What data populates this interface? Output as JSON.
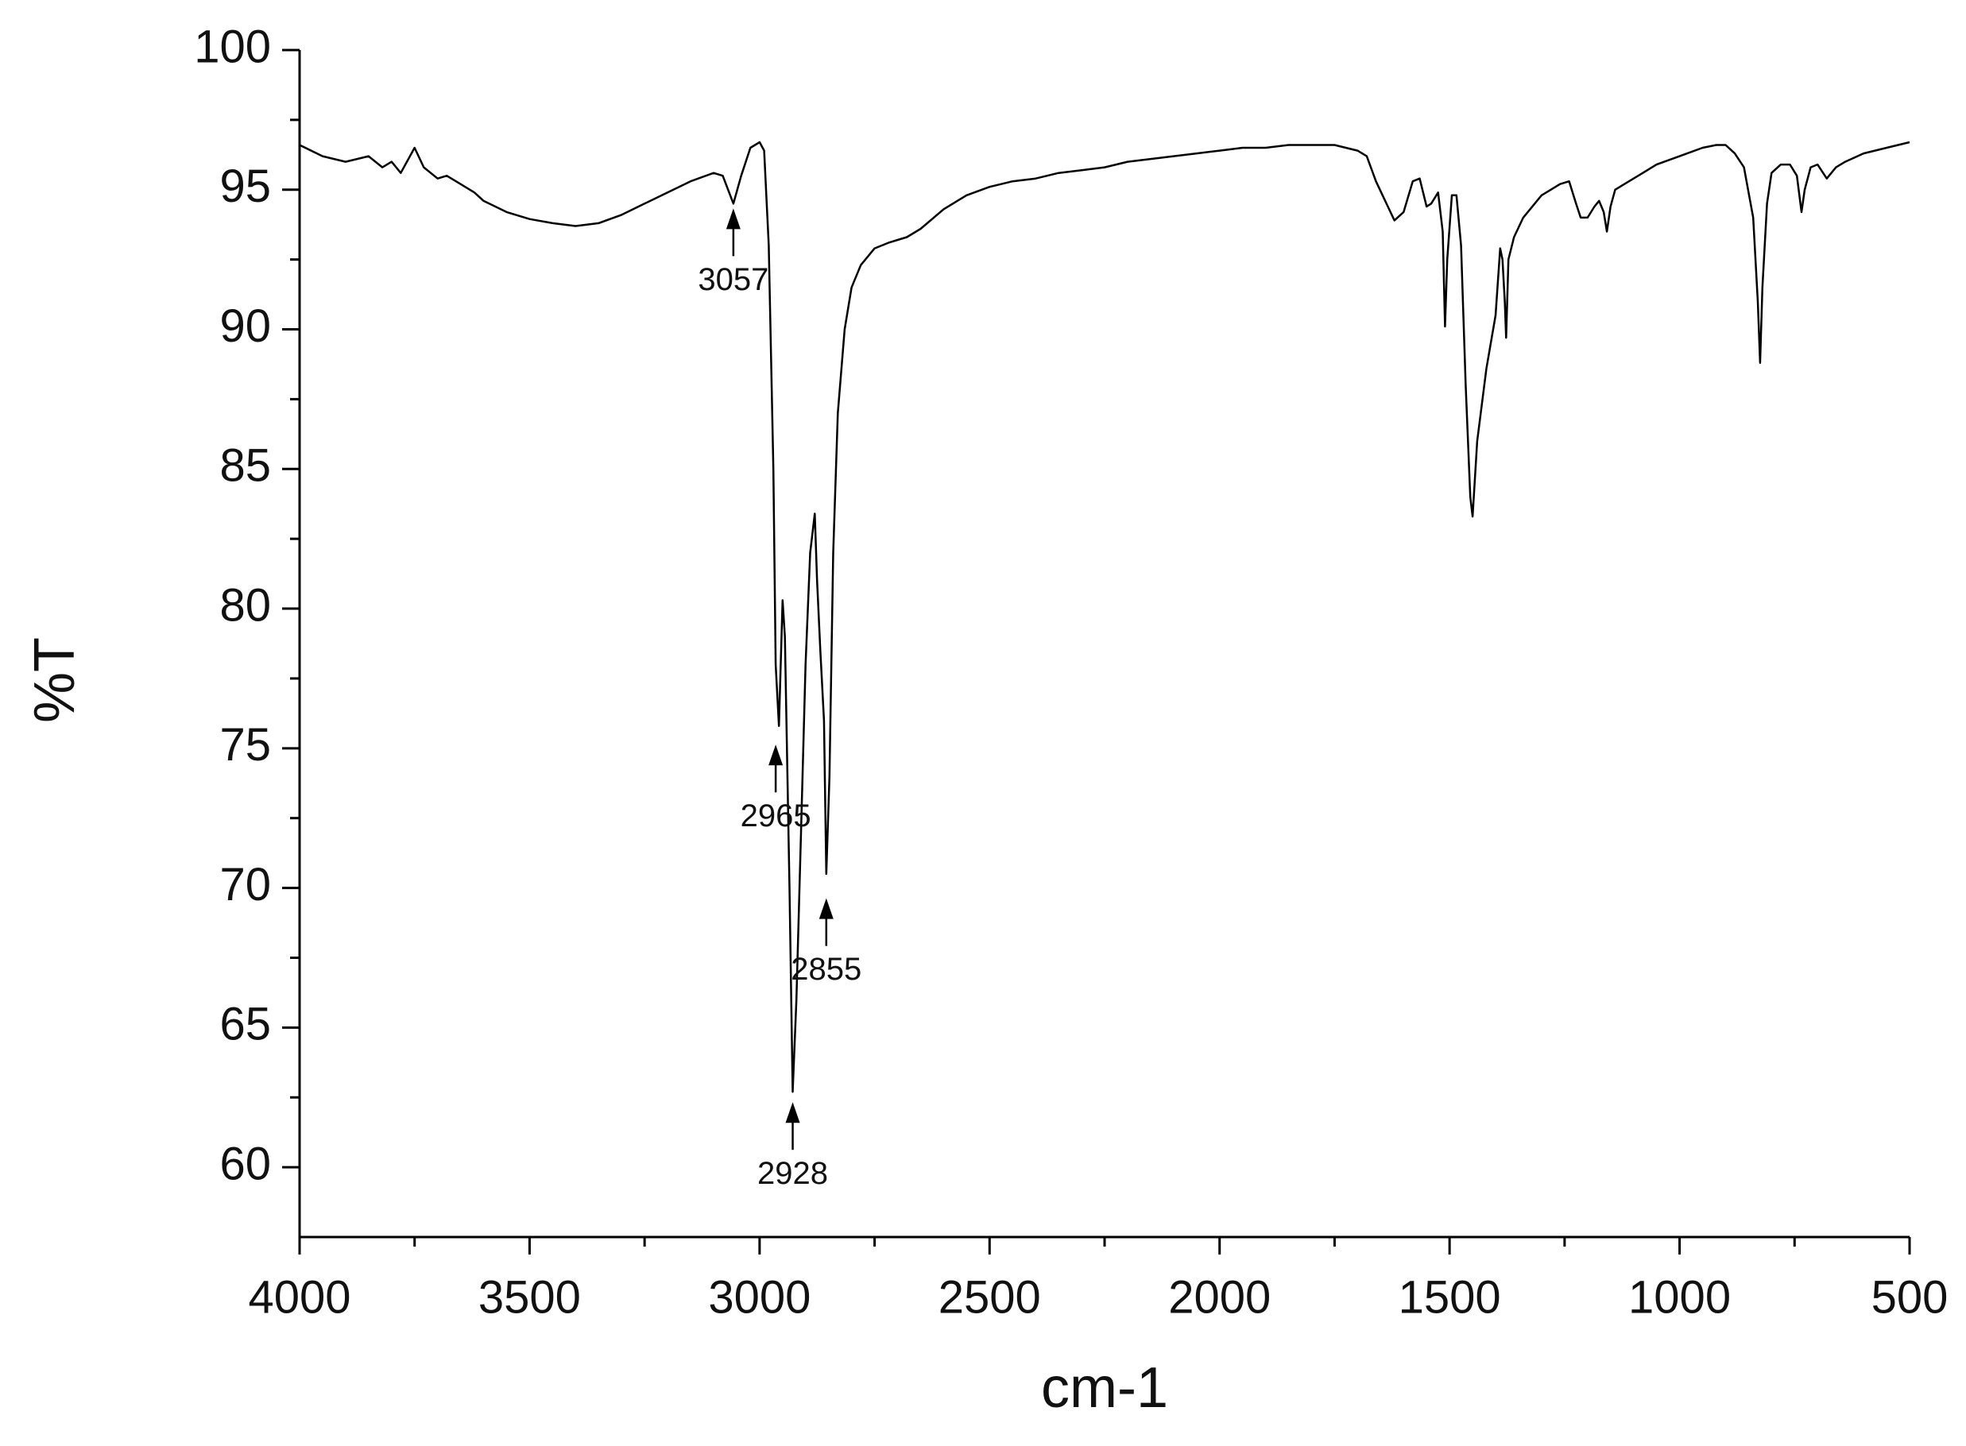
{
  "chart_data": {
    "type": "line",
    "xlabel": "cm-1",
    "ylabel": "%T",
    "xlim": [
      4000,
      500
    ],
    "xticks": [
      4000,
      3500,
      3000,
      2500,
      2000,
      1500,
      1000,
      500
    ],
    "ylim": [
      57.5,
      100
    ],
    "yticks": [
      60,
      65,
      70,
      75,
      80,
      85,
      90,
      95,
      100
    ],
    "color": "#000000",
    "x": [
      4000,
      3950,
      3900,
      3850,
      3820,
      3800,
      3780,
      3750,
      3730,
      3700,
      3680,
      3650,
      3620,
      3600,
      3550,
      3500,
      3450,
      3400,
      3350,
      3300,
      3250,
      3200,
      3150,
      3100,
      3080,
      3057,
      3040,
      3020,
      3000,
      2990,
      2980,
      2970,
      2965,
      2958,
      2950,
      2945,
      2935,
      2928,
      2920,
      2910,
      2900,
      2890,
      2880,
      2875,
      2868,
      2860,
      2855,
      2848,
      2840,
      2830,
      2815,
      2800,
      2780,
      2750,
      2720,
      2700,
      2680,
      2650,
      2600,
      2550,
      2500,
      2450,
      2400,
      2350,
      2300,
      2250,
      2200,
      2150,
      2100,
      2050,
      2000,
      1950,
      1900,
      1850,
      1800,
      1750,
      1700,
      1680,
      1660,
      1640,
      1620,
      1600,
      1580,
      1565,
      1550,
      1540,
      1525,
      1515,
      1510,
      1505,
      1495,
      1485,
      1475,
      1465,
      1455,
      1450,
      1440,
      1420,
      1400,
      1390,
      1385,
      1380,
      1377,
      1372,
      1360,
      1340,
      1320,
      1300,
      1280,
      1260,
      1240,
      1225,
      1215,
      1200,
      1185,
      1175,
      1165,
      1158,
      1150,
      1140,
      1120,
      1100,
      1080,
      1050,
      1000,
      950,
      920,
      900,
      880,
      860,
      840,
      830,
      825,
      820,
      810,
      800,
      780,
      760,
      745,
      735,
      728,
      715,
      700,
      680,
      660,
      640,
      600,
      550,
      500
    ],
    "values": [
      96.6,
      96.2,
      96.0,
      96.2,
      95.8,
      96.0,
      95.6,
      96.5,
      95.8,
      95.4,
      95.5,
      95.2,
      94.9,
      94.6,
      94.2,
      93.95,
      93.8,
      93.7,
      93.8,
      94.1,
      94.5,
      94.9,
      95.3,
      95.6,
      95.5,
      94.5,
      95.5,
      96.5,
      96.7,
      96.4,
      93,
      85,
      78,
      75.8,
      80.3,
      79,
      70,
      62.7,
      66,
      72,
      78,
      82,
      83.4,
      81,
      78.5,
      76,
      70.5,
      74,
      82,
      87,
      90,
      91.5,
      92.3,
      92.9,
      93.1,
      93.2,
      93.3,
      93.6,
      94.3,
      94.8,
      95.1,
      95.3,
      95.4,
      95.6,
      95.7,
      95.8,
      96.0,
      96.1,
      96.2,
      96.3,
      96.4,
      96.5,
      96.5,
      96.6,
      96.6,
      96.6,
      96.4,
      96.2,
      95.3,
      94.6,
      93.9,
      94.2,
      95.3,
      95.4,
      94.4,
      94.5,
      94.9,
      93.5,
      90.1,
      92.5,
      94.8,
      94.8,
      93,
      88,
      84,
      83.3,
      86,
      88.6,
      90.5,
      92.9,
      92.5,
      91.0,
      89.7,
      92.5,
      93.3,
      94.0,
      94.4,
      94.8,
      95.0,
      95.2,
      95.3,
      94.5,
      94.0,
      94.0,
      94.4,
      94.6,
      94.2,
      93.5,
      94.4,
      95.0,
      95.2,
      95.4,
      95.6,
      95.9,
      96.2,
      96.5,
      96.6,
      96.6,
      96.3,
      95.8,
      94.0,
      91.0,
      88.8,
      91.5,
      94.5,
      95.6,
      95.9,
      95.9,
      95.5,
      94.2,
      95.0,
      95.8,
      95.9,
      95.4,
      95.8,
      96.0,
      96.3,
      96.5,
      96.7
    ],
    "annotations": [
      {
        "text": "3057",
        "x": 3057,
        "y": 94.5
      },
      {
        "text": "2965",
        "x": 2965,
        "y": 75.3
      },
      {
        "text": "2928",
        "x": 2928,
        "y": 62.5
      },
      {
        "text": "2855",
        "x": 2855,
        "y": 69.8
      }
    ]
  }
}
